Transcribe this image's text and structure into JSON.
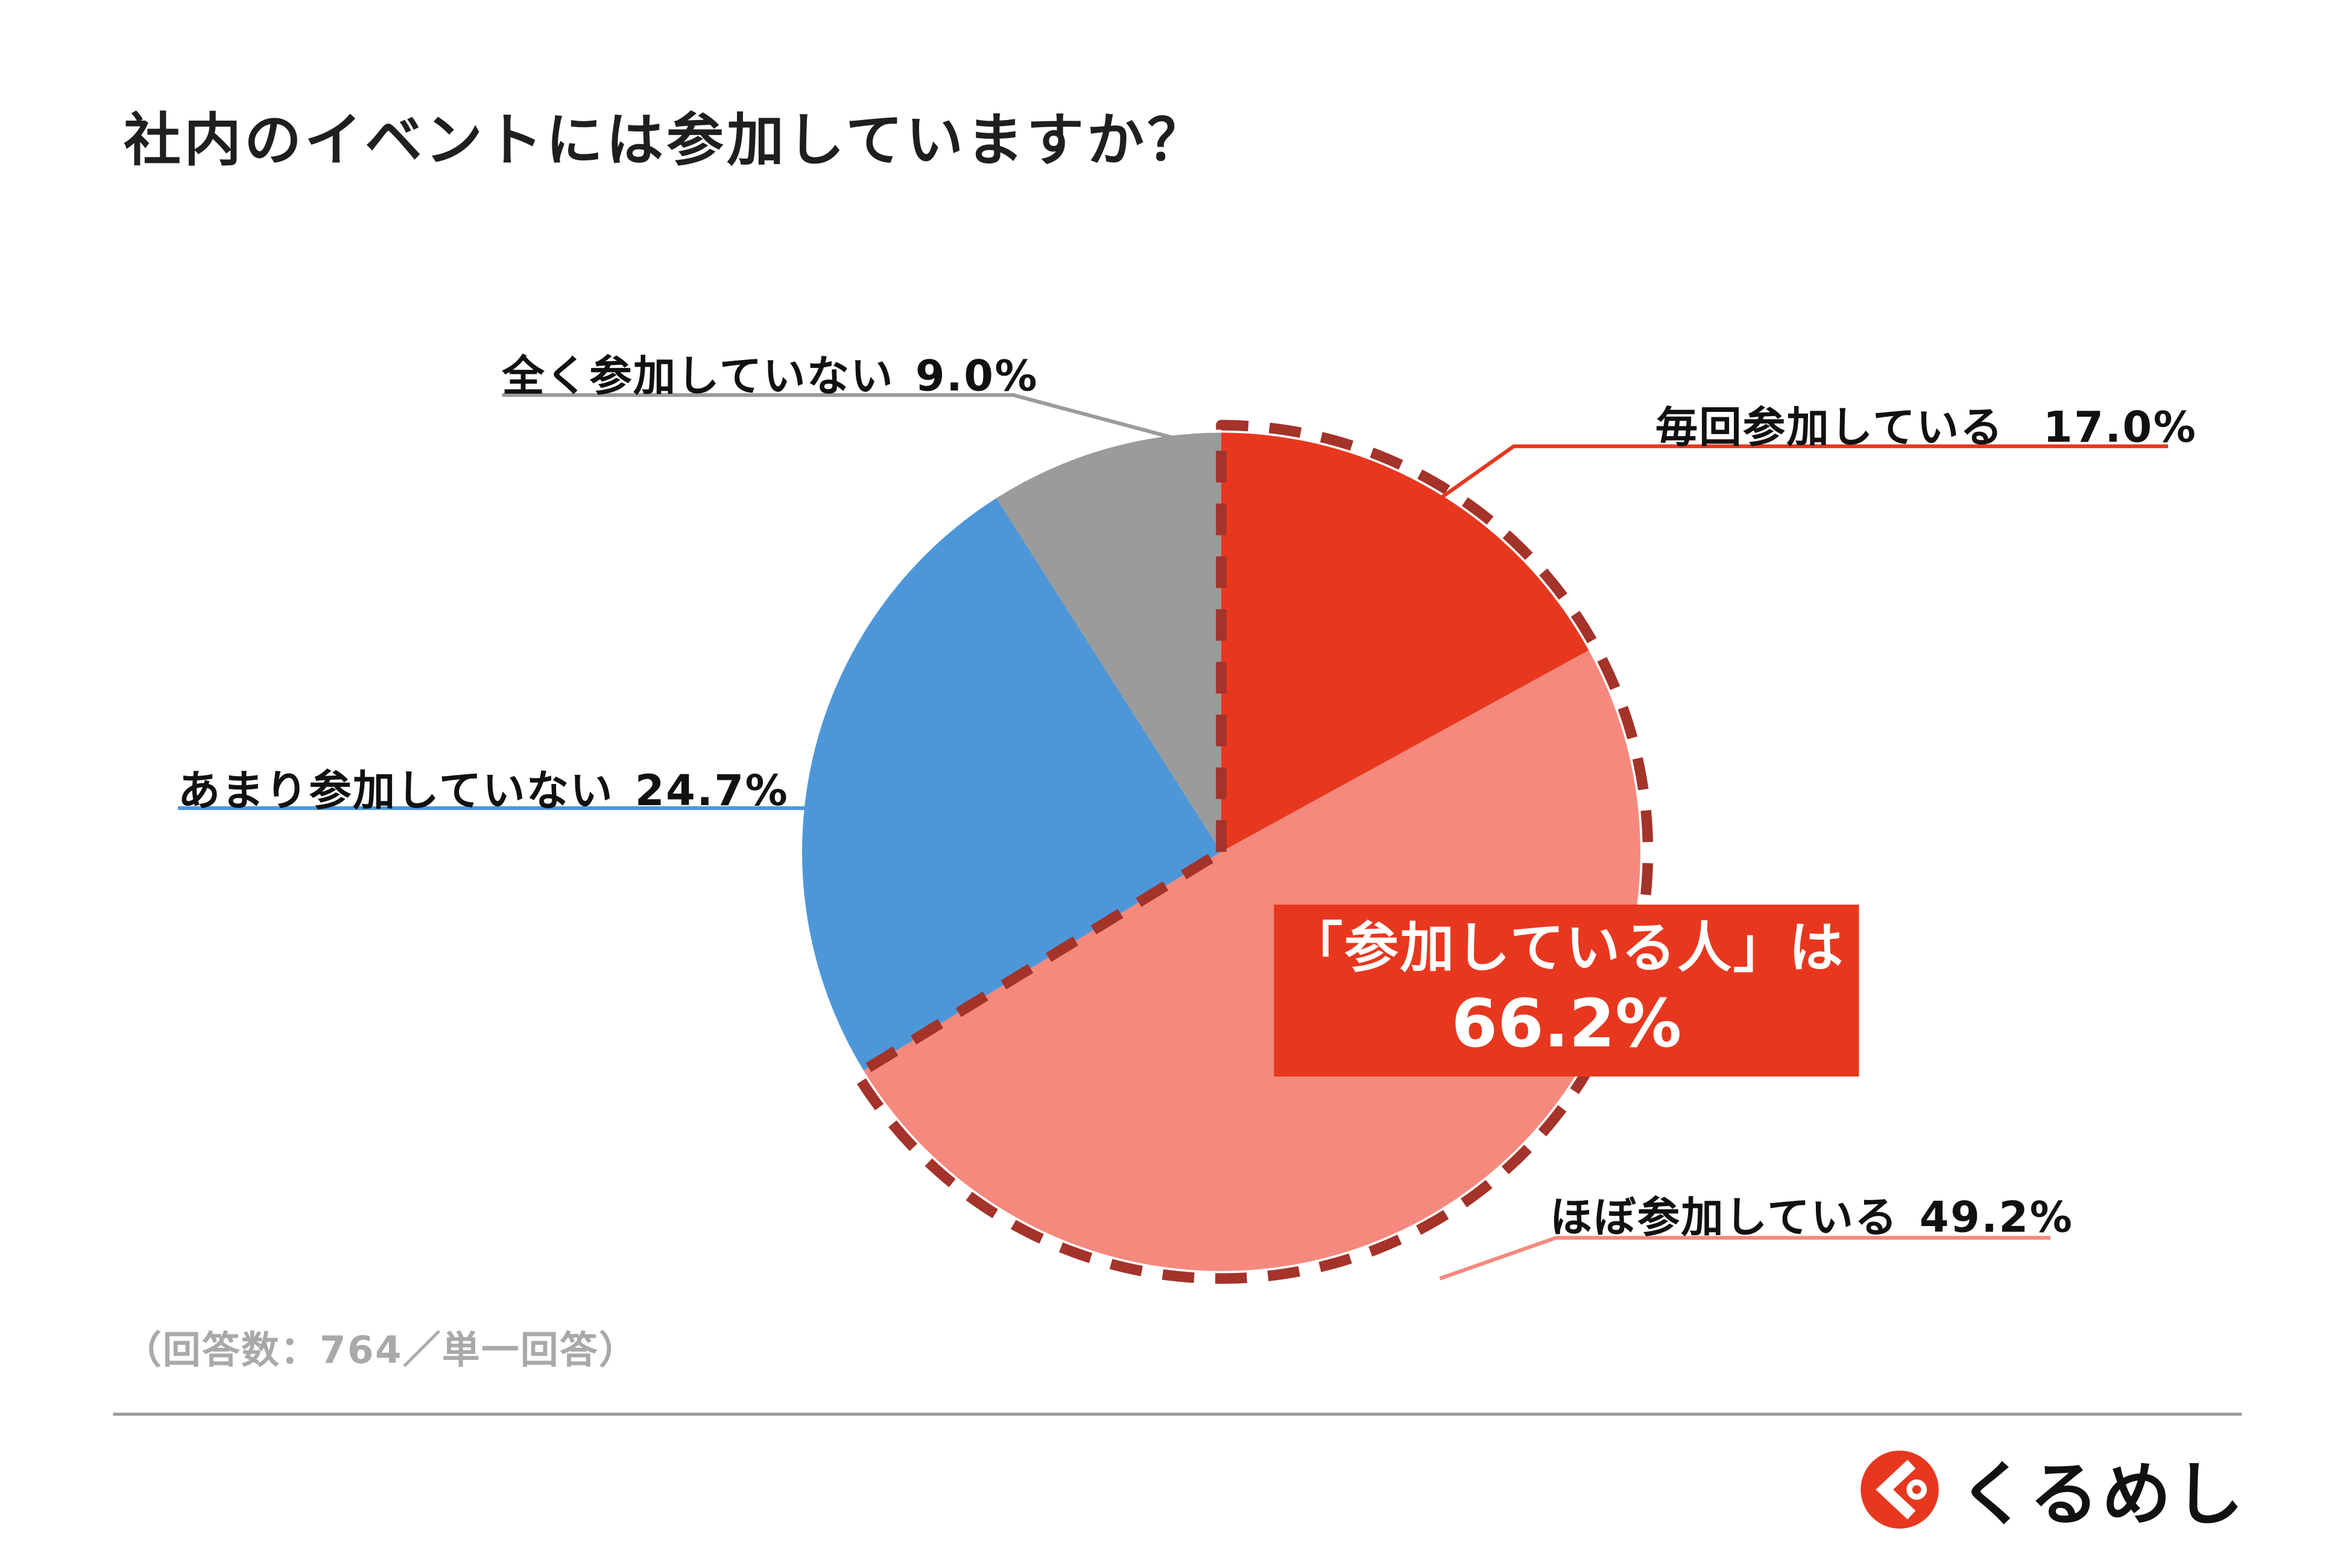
{
  "page": {
    "title": "社内のイベントには参加していますか？",
    "footnote": "（回答数：764／単一回答）",
    "brand_name": "くるめし"
  },
  "chart_data": {
    "type": "pie",
    "title": "社内のイベントには参加していますか？",
    "start_angle_deg": 0,
    "direction": "clockwise",
    "slices": [
      {
        "label": "毎回参加している",
        "value": 17.0,
        "display": "17.0%",
        "color": "#E7381F"
      },
      {
        "label": "ほぼ参加している",
        "value": 49.2,
        "display": "49.2%",
        "color": "#F5897D"
      },
      {
        "label": "あまり参加していない",
        "value": 24.7,
        "display": "24.7%",
        "color": "#4D97D9"
      },
      {
        "label": "全く参加していない",
        "value": 9.0,
        "display": "9.0%",
        "color": "#9B9B9B"
      }
    ],
    "highlight": {
      "label": "「参加している人」は",
      "value_display": "66.2%",
      "covers": [
        "毎回参加している",
        "ほぼ参加している"
      ],
      "outline_color": "#A4332A",
      "box_color": "#E7381F"
    },
    "sample_note": "（回答数：764／単一回答）",
    "legend_position": "around",
    "grid": false
  }
}
